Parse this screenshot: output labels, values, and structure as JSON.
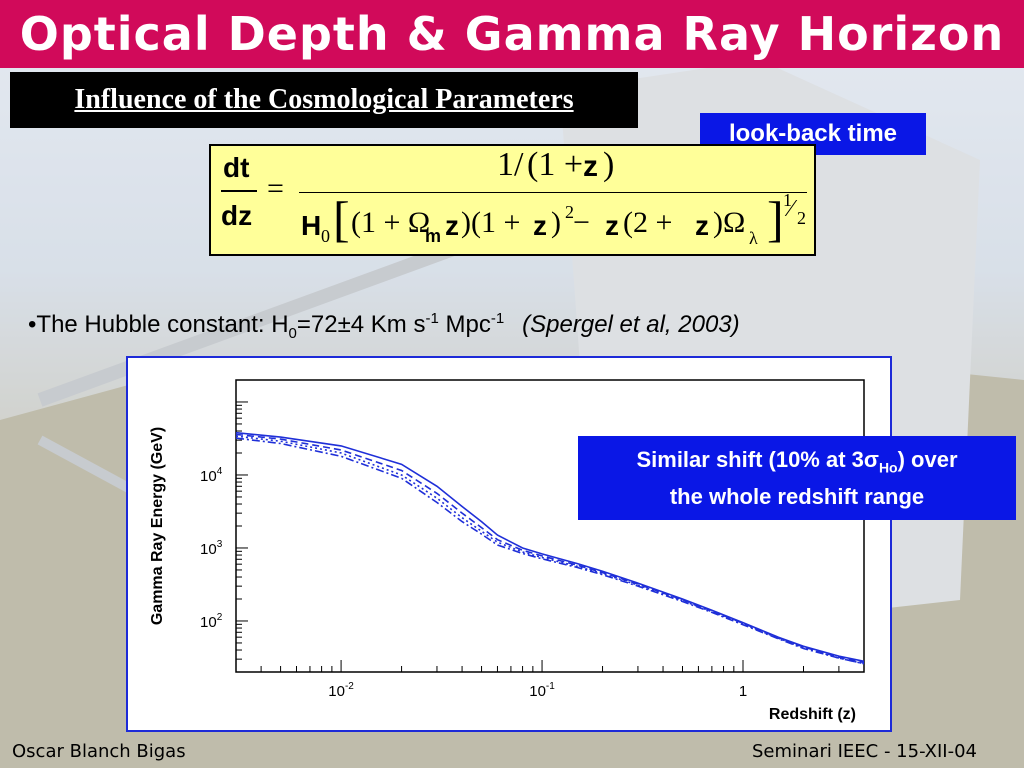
{
  "slide": {
    "title": "Optical Depth & Gamma Ray Horizon",
    "subtitle": "Influence of the Cosmological Parameters",
    "lookback_label": "look-back time"
  },
  "formula": {
    "lhs_num": "dt",
    "lhs_den": "dz",
    "equals": "=",
    "rhs_num_a": "1/",
    "rhs_num_b": "(1 + ",
    "rhs_num_z": "z",
    "rhs_num_close": ")",
    "h": "H",
    "h_sub": "0",
    "bracket_open": "[",
    "p1": "(1 + Ω",
    "p1_sub": "m",
    "z": "z",
    "p2": ")(1 + ",
    "p3": ")",
    "sq": "2",
    "minus": " − ",
    "p4": "(2 + ",
    "p5": ")Ω",
    "lambda_sub": "λ",
    "bracket_close": "]",
    "exp_num": "1",
    "exp_slash": "⁄",
    "exp_den": "2"
  },
  "hubble": {
    "prefix": "•The Hubble constant: H",
    "sub": "0",
    "value": "=72±4 Km s",
    "exp1": "-1",
    "mid": " Mpc",
    "exp2": "-1",
    "citation": "(Spergel et al, 2003)"
  },
  "callout": {
    "line1_a": "Similar shift (10% at 3σ",
    "line1_sub": "Ho",
    "line1_b": ") over",
    "line2": "the whole redshift range"
  },
  "footer": {
    "left": "Oscar Blanch Bigas",
    "right": "Seminari IEEC - 15-XII-04"
  },
  "colors": {
    "title_bar": "#d10a5a",
    "accent_blue": "#0a17e6",
    "formula_bg": "#ffff99",
    "curve": "#1f2fd8"
  },
  "chart_data": {
    "type": "line",
    "xlabel": "Redshift (z)",
    "ylabel": "Gamma Ray Energy (GeV)",
    "x_scale": "log",
    "y_scale": "log",
    "xlim": [
      0.003,
      4
    ],
    "ylim": [
      20,
      200000
    ],
    "x_ticks": [
      {
        "v": 0.01,
        "label": "10",
        "exp": "-2"
      },
      {
        "v": 0.1,
        "label": "10",
        "exp": "-1"
      },
      {
        "v": 1,
        "label": "1",
        "exp": ""
      }
    ],
    "y_ticks": [
      {
        "v": 100,
        "label": "10",
        "exp": "2"
      },
      {
        "v": 1000,
        "label": "10",
        "exp": "3"
      },
      {
        "v": 10000,
        "label": "10",
        "exp": "4"
      }
    ],
    "legend": "none",
    "grid": false,
    "series": [
      {
        "style": "solid",
        "x": [
          0.003,
          0.005,
          0.01,
          0.02,
          0.03,
          0.04,
          0.05,
          0.06,
          0.08,
          0.1,
          0.15,
          0.2,
          0.3,
          0.5,
          0.7,
          1.0,
          1.5,
          2.0,
          3.0,
          4.0
        ],
        "y": [
          38000,
          33000,
          25000,
          14000,
          7000,
          3700,
          2300,
          1500,
          1000,
          830,
          610,
          480,
          330,
          200,
          140,
          95,
          60,
          45,
          33,
          28
        ]
      },
      {
        "style": "dashed",
        "x": [
          0.003,
          0.005,
          0.01,
          0.02,
          0.03,
          0.04,
          0.05,
          0.06,
          0.08,
          0.1,
          0.15,
          0.2,
          0.3,
          0.5,
          0.7,
          1.0,
          1.5,
          2.0,
          3.0,
          4.0
        ],
        "y": [
          36000,
          31000,
          22000,
          11500,
          5600,
          3000,
          1900,
          1300,
          930,
          780,
          580,
          460,
          320,
          195,
          137,
          93,
          59,
          44,
          32,
          27
        ]
      },
      {
        "style": "dotted",
        "x": [
          0.003,
          0.005,
          0.01,
          0.02,
          0.03,
          0.04,
          0.05,
          0.06,
          0.08,
          0.1,
          0.15,
          0.2,
          0.3,
          0.5,
          0.7,
          1.0,
          1.5,
          2.0,
          3.0,
          4.0
        ],
        "y": [
          34000,
          29000,
          20000,
          10000,
          4800,
          2600,
          1700,
          1200,
          880,
          740,
          560,
          445,
          310,
          190,
          134,
          91,
          58,
          43,
          31,
          26
        ]
      },
      {
        "style": "dashdot",
        "x": [
          0.003,
          0.005,
          0.01,
          0.02,
          0.03,
          0.04,
          0.05,
          0.06,
          0.08,
          0.1,
          0.15,
          0.2,
          0.3,
          0.5,
          0.7,
          1.0,
          1.5,
          2.0,
          3.0,
          4.0
        ],
        "y": [
          32000,
          27000,
          18000,
          9000,
          4200,
          2300,
          1550,
          1100,
          840,
          710,
          540,
          430,
          300,
          185,
          131,
          89,
          57,
          42,
          31,
          26
        ]
      }
    ]
  }
}
